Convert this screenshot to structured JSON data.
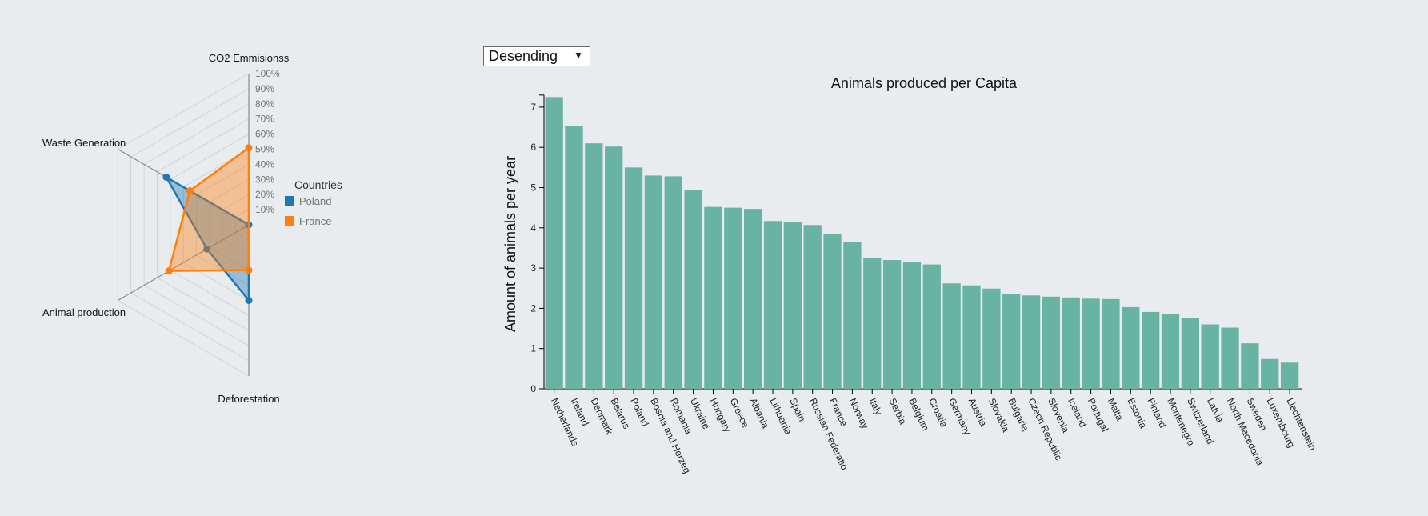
{
  "sort_control": {
    "selected": "Desending",
    "arrow": "▼"
  },
  "chart_data": [
    {
      "type": "radar",
      "axes": [
        "CO2 Emmisionss",
        "Waste Generation",
        "Animal production",
        "Deforestation"
      ],
      "scale_ticks": [
        "10%",
        "20%",
        "30%",
        "40%",
        "50%",
        "60%",
        "70%",
        "80%",
        "90%",
        "100%"
      ],
      "legend_title": "Countries",
      "legend_position": "right",
      "series": [
        {
          "name": "Poland",
          "color": "#1f77b4",
          "values": [
            0.5,
            0.32,
            0.63,
            0.0
          ]
        },
        {
          "name": "France",
          "color": "#ff7f0e",
          "values": [
            0.3,
            0.61,
            0.45,
            0.51
          ]
        }
      ]
    },
    {
      "type": "bar",
      "title": "Animals produced per Capita",
      "ylabel": "Amount of animals per year",
      "xlabel": "",
      "ylim": [
        0,
        7.3
      ],
      "yticks": [
        0,
        1,
        2,
        3,
        4,
        5,
        6,
        7
      ],
      "bar_color": "#69b3a2",
      "categories": [
        "Netherlands",
        "Ireland",
        "Denmark",
        "Belarus",
        "Poland",
        "Bosnia and Herzegovina",
        "Romania",
        "Ukraine",
        "Hungary",
        "Greece",
        "Albania",
        "Lithuania",
        "Spain",
        "Russian Federation",
        "France",
        "Norway",
        "Italy",
        "Serbia",
        "Belgium",
        "Croatia",
        "Germany",
        "Austria",
        "Slovakia",
        "Bulgaria",
        "Czech Republic",
        "Slovenia",
        "Iceland",
        "Portugal",
        "Malta",
        "Estonia",
        "Finland",
        "Montenegro",
        "Switzerland",
        "Latvia",
        "North Macedonia",
        "Sweden",
        "Luxembourg",
        "Liechtenstein"
      ],
      "values": [
        7.25,
        6.53,
        6.1,
        6.02,
        5.5,
        5.3,
        5.28,
        4.93,
        4.52,
        4.5,
        4.47,
        4.17,
        4.14,
        4.07,
        3.84,
        3.65,
        3.25,
        3.2,
        3.16,
        3.09,
        2.62,
        2.57,
        2.49,
        2.35,
        2.32,
        2.29,
        2.27,
        2.24,
        2.23,
        2.03,
        1.91,
        1.86,
        1.75,
        1.6,
        1.52,
        1.13,
        0.74,
        0.65
      ]
    }
  ]
}
